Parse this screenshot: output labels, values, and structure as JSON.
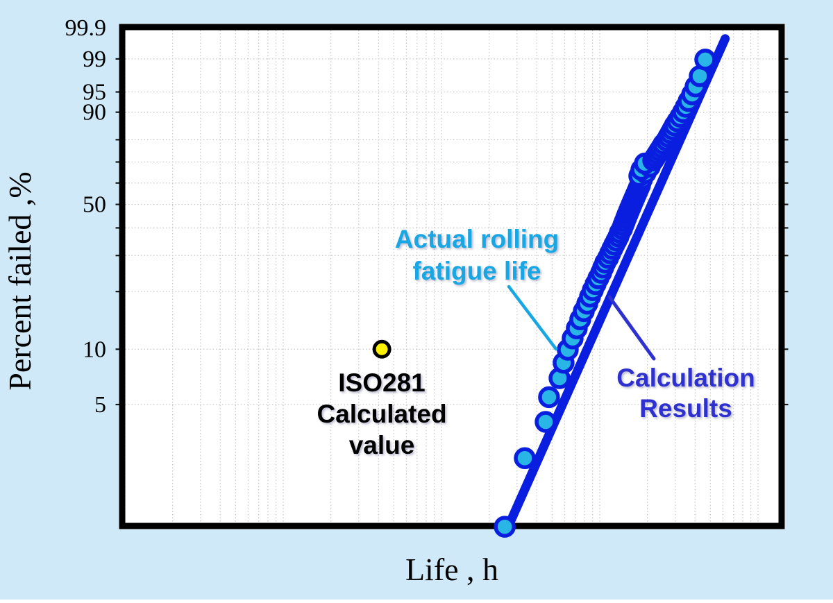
{
  "chart_data": {
    "type": "scatter",
    "title": "",
    "xlabel": "Life , h",
    "ylabel": "Percent failed ,%",
    "x_axis": {
      "scale": "log",
      "tick_labels": "none (axis is unlabeled in original; life values below are relative units, decade grid 1–10000)",
      "gridlines": "log decades with minor lines at 2–9 per decade"
    },
    "y_axis": {
      "scale": "weibull-probability",
      "tick_labels": [
        "99.9",
        "99",
        "95",
        "90",
        "50",
        "10",
        "5"
      ],
      "tick_values": [
        99.9,
        99,
        95,
        90,
        50,
        10,
        5
      ],
      "gridline_values": [
        99,
        95,
        90,
        80,
        70,
        60,
        50,
        40,
        30,
        20,
        10,
        5
      ],
      "range_percent": [
        1,
        99.9
      ]
    },
    "series": [
      {
        "name": "Actual rolling fatigue life",
        "type": "scatter",
        "marker_fill": "#29b5e6",
        "marker_stroke": "#0a1ee0",
        "points": [
          [
            251,
            1.04
          ],
          [
            336,
            2.52
          ],
          [
            455,
            4.01
          ],
          [
            478,
            5.49
          ],
          [
            557,
            6.97
          ],
          [
            591,
            8.46
          ],
          [
            628,
            9.94
          ],
          [
            674,
            11.42
          ],
          [
            716,
            12.91
          ],
          [
            753,
            14.39
          ],
          [
            793,
            15.88
          ],
          [
            834,
            17.36
          ],
          [
            868,
            18.84
          ],
          [
            904,
            20.33
          ],
          [
            941,
            21.81
          ],
          [
            980,
            23.29
          ],
          [
            1020,
            24.78
          ],
          [
            1052,
            26.26
          ],
          [
            1084,
            27.74
          ],
          [
            1129,
            29.23
          ],
          [
            1164,
            30.71
          ],
          [
            1199,
            32.2
          ],
          [
            1236,
            33.68
          ],
          [
            1275,
            35.16
          ],
          [
            1313,
            36.65
          ],
          [
            1340,
            38.13
          ],
          [
            1382,
            39.61
          ],
          [
            1410,
            41.1
          ],
          [
            1439,
            42.58
          ],
          [
            1468,
            44.07
          ],
          [
            1498,
            45.55
          ],
          [
            1528,
            47.03
          ],
          [
            1560,
            48.52
          ],
          [
            1591,
            50.0
          ],
          [
            1624,
            51.48
          ],
          [
            1657,
            52.97
          ],
          [
            1691,
            54.45
          ],
          [
            1725,
            55.93
          ],
          [
            1760,
            57.42
          ],
          [
            1796,
            58.9
          ],
          [
            1815,
            60.39
          ],
          [
            1851,
            61.87
          ],
          [
            1778,
            63.35
          ],
          [
            1948,
            64.84
          ],
          [
            1833,
            66.32
          ],
          [
            2070,
            67.8
          ],
          [
            1928,
            69.29
          ],
          [
            2177,
            70.77
          ],
          [
            2244,
            72.26
          ],
          [
            2313,
            73.74
          ],
          [
            2384,
            75.22
          ],
          [
            2457,
            76.71
          ],
          [
            2533,
            78.19
          ],
          [
            2637,
            79.67
          ],
          [
            2718,
            81.16
          ],
          [
            2802,
            82.64
          ],
          [
            2887,
            84.12
          ],
          [
            2977,
            85.61
          ],
          [
            3099,
            87.09
          ],
          [
            3228,
            88.57
          ],
          [
            3361,
            90.06
          ],
          [
            3499,
            91.54
          ],
          [
            3644,
            93.02
          ],
          [
            3833,
            94.51
          ],
          [
            4031,
            95.99
          ],
          [
            4281,
            97.48
          ],
          [
            4642,
            98.96
          ]
        ]
      },
      {
        "name": "Calculation Results",
        "type": "line",
        "color": "#0a1ee0",
        "from": [
          265,
          1.05
        ],
        "to": [
          6200,
          99.75
        ]
      },
      {
        "name": "ISO281 Calculated value",
        "type": "point",
        "marker_fill": "#fff200",
        "marker_stroke": "#000000",
        "point": [
          42,
          10
        ]
      }
    ],
    "annotations": [
      {
        "id": "actual",
        "lines": [
          "Actual rolling",
          "fatigue life"
        ],
        "color": "#18a7e3"
      },
      {
        "id": "calc",
        "lines": [
          "Calculation",
          "Results"
        ],
        "color": "#2f31cf"
      },
      {
        "id": "iso",
        "lines": [
          "ISO281",
          "Calculated",
          "value"
        ],
        "color": "#000000"
      }
    ],
    "colors": {
      "background": "#cfe9f8",
      "plot_background": "#ffffff",
      "frame": "#000000",
      "gridline": "#c9c9c9",
      "tick": "#1a1a1a"
    },
    "legend_position": "none"
  }
}
